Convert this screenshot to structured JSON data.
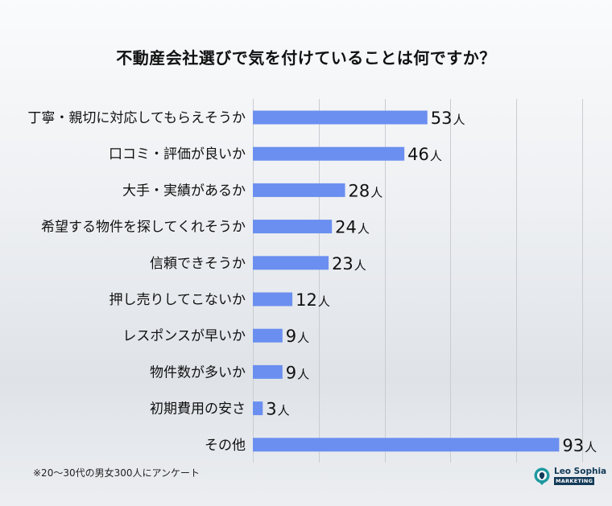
{
  "chart_data": {
    "type": "bar",
    "orientation": "horizontal",
    "title": "不動産会社選びで気を付けていることは何ですか？",
    "categories": [
      "丁寧・親切に対応してもらえそうか",
      "口コミ・評価が良いか",
      "大手・実績があるか",
      "希望する物件を探してくれそうか",
      "信頼できそうか",
      "押し売りしてこないか",
      "レスポンスが早いか",
      "物件数が多いか",
      "初期費用の安さ",
      "その他"
    ],
    "values": [
      53,
      46,
      28,
      24,
      23,
      12,
      9,
      9,
      3,
      93
    ],
    "unit": "人",
    "xlim": [
      0,
      100
    ],
    "xlabel": "",
    "ylabel": "",
    "grid": true,
    "bar_color": "#6b8ff0"
  },
  "footnote": "※20〜30代の男女300人にアンケート",
  "logo": {
    "name": "Leo Sophia",
    "sub": "MARKETING",
    "icon": "lion-head-icon"
  }
}
